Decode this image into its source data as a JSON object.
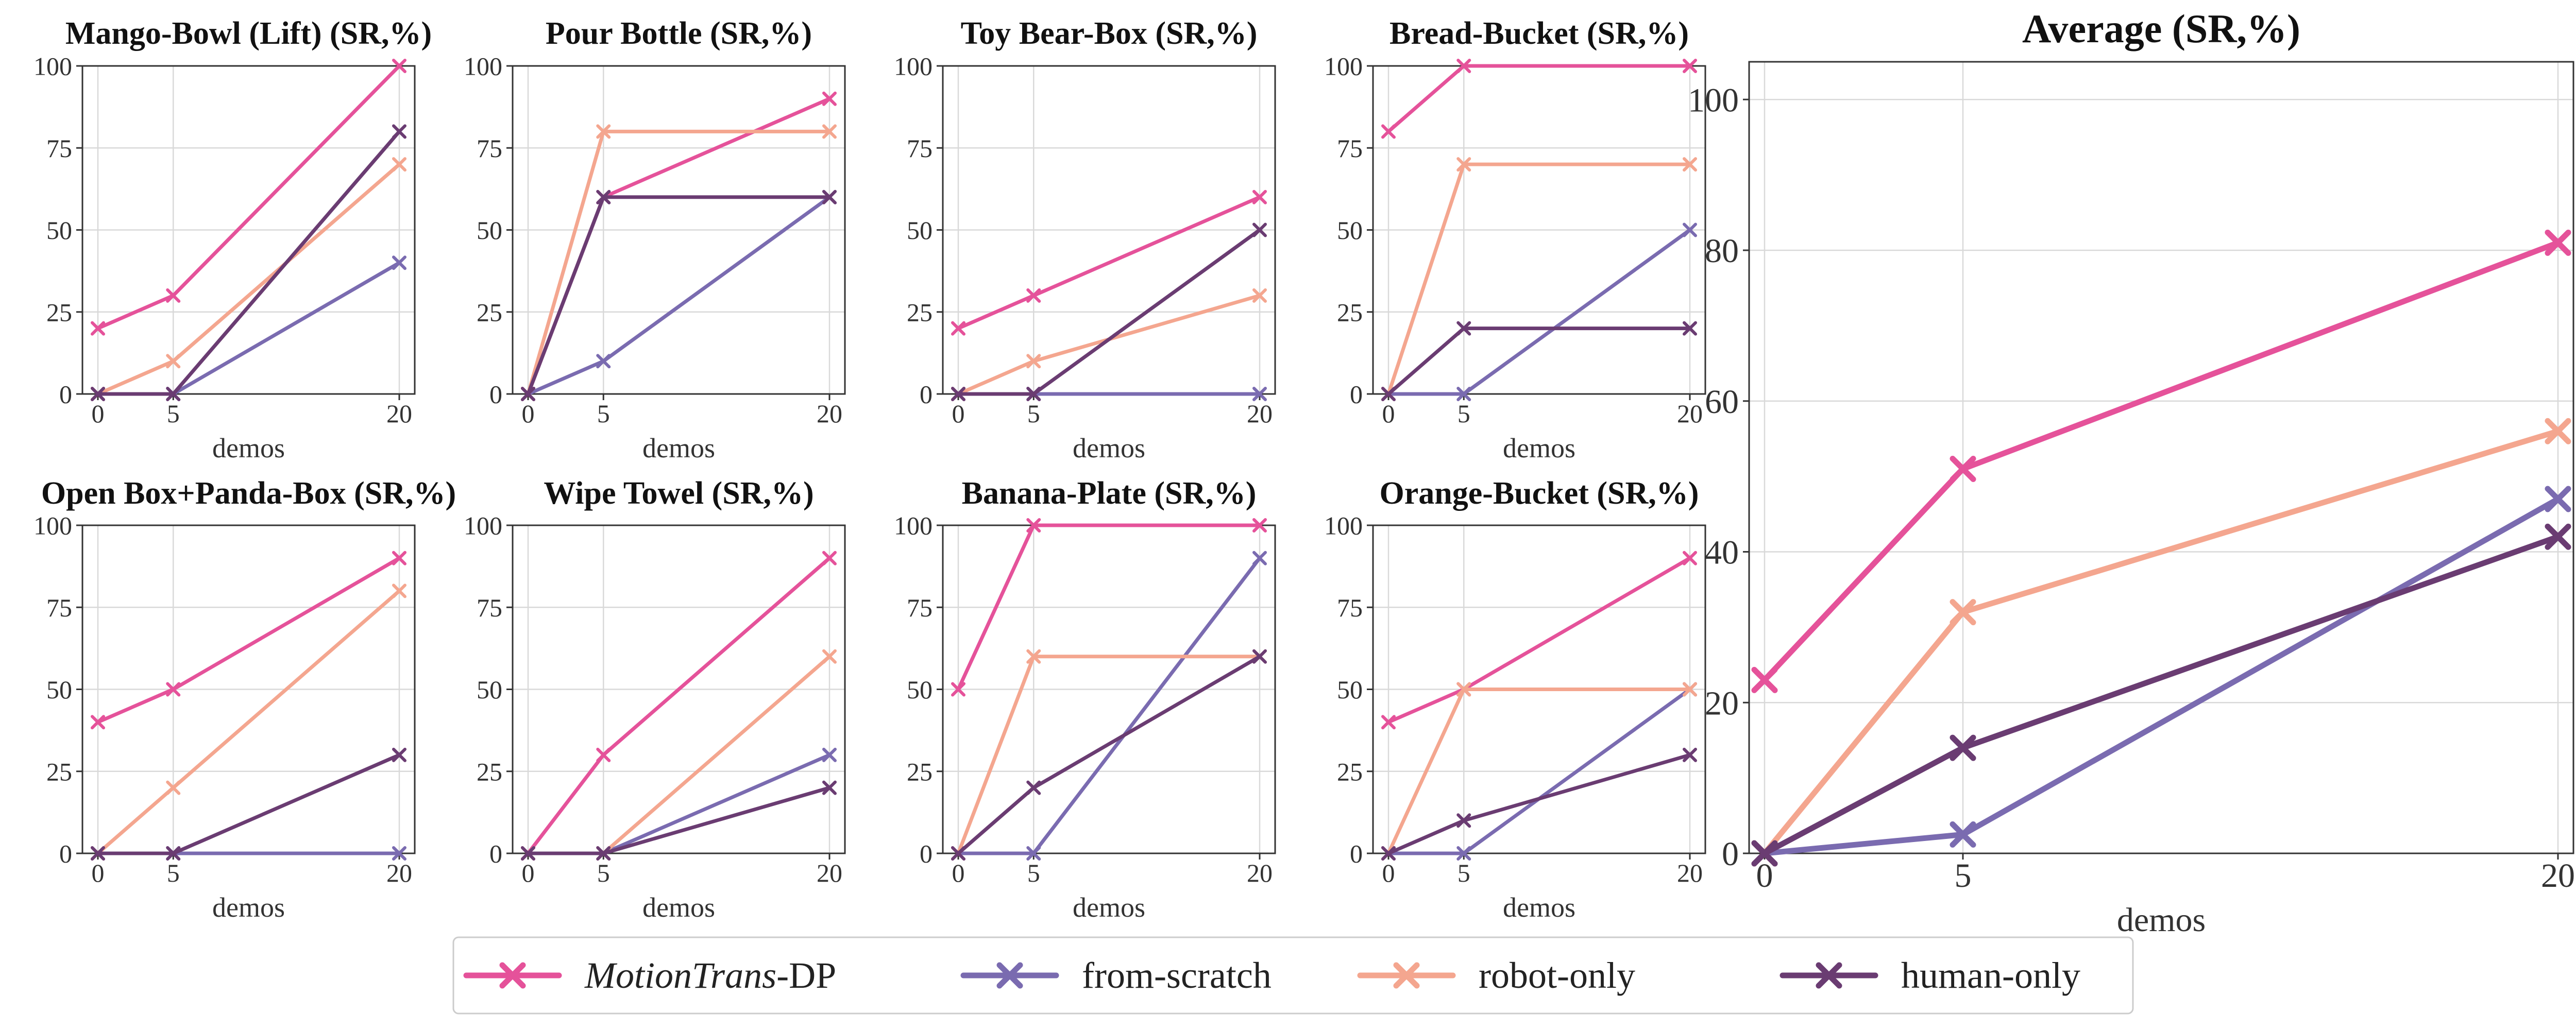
{
  "colors": {
    "MotionTrans-DP": "#e5529a",
    "from-scratch": "#7a6bb0",
    "robot-only": "#f4a68f",
    "human-only": "#6a3c72"
  },
  "legend": {
    "entries": [
      {
        "key": "MotionTrans-DP",
        "italic_part": "MotionTrans",
        "rest": "-DP"
      },
      {
        "key": "from-scratch",
        "italic_part": "",
        "rest": "from-scratch"
      },
      {
        "key": "robot-only",
        "italic_part": "",
        "rest": "robot-only"
      },
      {
        "key": "human-only",
        "italic_part": "",
        "rest": "human-only"
      }
    ]
  },
  "chart_data": [
    {
      "type": "line",
      "title": "Mango-Bowl (Lift) (SR,%)",
      "xlabel": "demos",
      "categories": [
        "0",
        "5",
        "20"
      ],
      "ylim": [
        0,
        100
      ],
      "yticks": [
        0,
        25,
        50,
        75,
        100
      ],
      "series": [
        {
          "name": "MotionTrans-DP",
          "values": [
            20,
            30,
            100
          ]
        },
        {
          "name": "from-scratch",
          "values": [
            0,
            0,
            40
          ]
        },
        {
          "name": "robot-only",
          "values": [
            0,
            10,
            70
          ]
        },
        {
          "name": "human-only",
          "values": [
            0,
            0,
            80
          ]
        }
      ]
    },
    {
      "type": "line",
      "title": "Pour Bottle (SR,%)",
      "xlabel": "demos",
      "categories": [
        "0",
        "5",
        "20"
      ],
      "ylim": [
        0,
        100
      ],
      "yticks": [
        0,
        25,
        50,
        75,
        100
      ],
      "series": [
        {
          "name": "MotionTrans-DP",
          "values": [
            0,
            60,
            90
          ]
        },
        {
          "name": "from-scratch",
          "values": [
            0,
            10,
            60
          ]
        },
        {
          "name": "robot-only",
          "values": [
            0,
            80,
            80
          ]
        },
        {
          "name": "human-only",
          "values": [
            0,
            60,
            60
          ]
        }
      ]
    },
    {
      "type": "line",
      "title": "Toy Bear-Box (SR,%)",
      "xlabel": "demos",
      "categories": [
        "0",
        "5",
        "20"
      ],
      "ylim": [
        0,
        100
      ],
      "yticks": [
        0,
        25,
        50,
        75,
        100
      ],
      "series": [
        {
          "name": "MotionTrans-DP",
          "values": [
            20,
            30,
            60
          ]
        },
        {
          "name": "from-scratch",
          "values": [
            0,
            0,
            0
          ]
        },
        {
          "name": "robot-only",
          "values": [
            0,
            10,
            30
          ]
        },
        {
          "name": "human-only",
          "values": [
            0,
            0,
            50
          ]
        }
      ]
    },
    {
      "type": "line",
      "title": "Bread-Bucket (SR,%)",
      "xlabel": "demos",
      "categories": [
        "0",
        "5",
        "20"
      ],
      "ylim": [
        0,
        100
      ],
      "yticks": [
        0,
        25,
        50,
        75,
        100
      ],
      "series": [
        {
          "name": "MotionTrans-DP",
          "values": [
            80,
            100,
            100
          ]
        },
        {
          "name": "from-scratch",
          "values": [
            0,
            0,
            50
          ]
        },
        {
          "name": "robot-only",
          "values": [
            0,
            70,
            70
          ]
        },
        {
          "name": "human-only",
          "values": [
            0,
            20,
            20
          ]
        }
      ]
    },
    {
      "type": "line",
      "title": "Open Box+Panda-Box (SR,%)",
      "xlabel": "demos",
      "categories": [
        "0",
        "5",
        "20"
      ],
      "ylim": [
        0,
        100
      ],
      "yticks": [
        0,
        25,
        50,
        75,
        100
      ],
      "series": [
        {
          "name": "MotionTrans-DP",
          "values": [
            40,
            50,
            90
          ]
        },
        {
          "name": "from-scratch",
          "values": [
            0,
            0,
            0
          ]
        },
        {
          "name": "robot-only",
          "values": [
            0,
            20,
            80
          ]
        },
        {
          "name": "human-only",
          "values": [
            0,
            0,
            30
          ]
        }
      ]
    },
    {
      "type": "line",
      "title": "Wipe Towel (SR,%)",
      "xlabel": "demos",
      "categories": [
        "0",
        "5",
        "20"
      ],
      "ylim": [
        0,
        100
      ],
      "yticks": [
        0,
        25,
        50,
        75,
        100
      ],
      "series": [
        {
          "name": "MotionTrans-DP",
          "values": [
            0,
            30,
            90
          ]
        },
        {
          "name": "from-scratch",
          "values": [
            0,
            0,
            30
          ]
        },
        {
          "name": "robot-only",
          "values": [
            0,
            0,
            60
          ]
        },
        {
          "name": "human-only",
          "values": [
            0,
            0,
            20
          ]
        }
      ]
    },
    {
      "type": "line",
      "title": "Banana-Plate (SR,%)",
      "xlabel": "demos",
      "categories": [
        "0",
        "5",
        "20"
      ],
      "ylim": [
        0,
        100
      ],
      "yticks": [
        0,
        25,
        50,
        75,
        100
      ],
      "series": [
        {
          "name": "MotionTrans-DP",
          "values": [
            50,
            100,
            100
          ]
        },
        {
          "name": "from-scratch",
          "values": [
            0,
            0,
            90
          ]
        },
        {
          "name": "robot-only",
          "values": [
            0,
            60,
            60
          ]
        },
        {
          "name": "human-only",
          "values": [
            0,
            20,
            60
          ]
        }
      ]
    },
    {
      "type": "line",
      "title": "Orange-Bucket (SR,%)",
      "xlabel": "demos",
      "categories": [
        "0",
        "5",
        "20"
      ],
      "ylim": [
        0,
        100
      ],
      "yticks": [
        0,
        25,
        50,
        75,
        100
      ],
      "series": [
        {
          "name": "MotionTrans-DP",
          "values": [
            40,
            50,
            90
          ]
        },
        {
          "name": "from-scratch",
          "values": [
            0,
            0,
            50
          ]
        },
        {
          "name": "robot-only",
          "values": [
            0,
            50,
            50
          ]
        },
        {
          "name": "human-only",
          "values": [
            0,
            10,
            30
          ]
        }
      ]
    },
    {
      "type": "line",
      "title": "Average (SR,%)",
      "xlabel": "demos",
      "categories": [
        "0",
        "5",
        "20"
      ],
      "ylim": [
        0,
        105
      ],
      "yticks": [
        0,
        20,
        40,
        60,
        80,
        100
      ],
      "series": [
        {
          "name": "MotionTrans-DP",
          "values": [
            23,
            51,
            81
          ]
        },
        {
          "name": "from-scratch",
          "values": [
            0,
            2.5,
            47
          ]
        },
        {
          "name": "robot-only",
          "values": [
            0,
            32,
            56
          ]
        },
        {
          "name": "human-only",
          "values": [
            0,
            14,
            42
          ]
        }
      ]
    }
  ]
}
